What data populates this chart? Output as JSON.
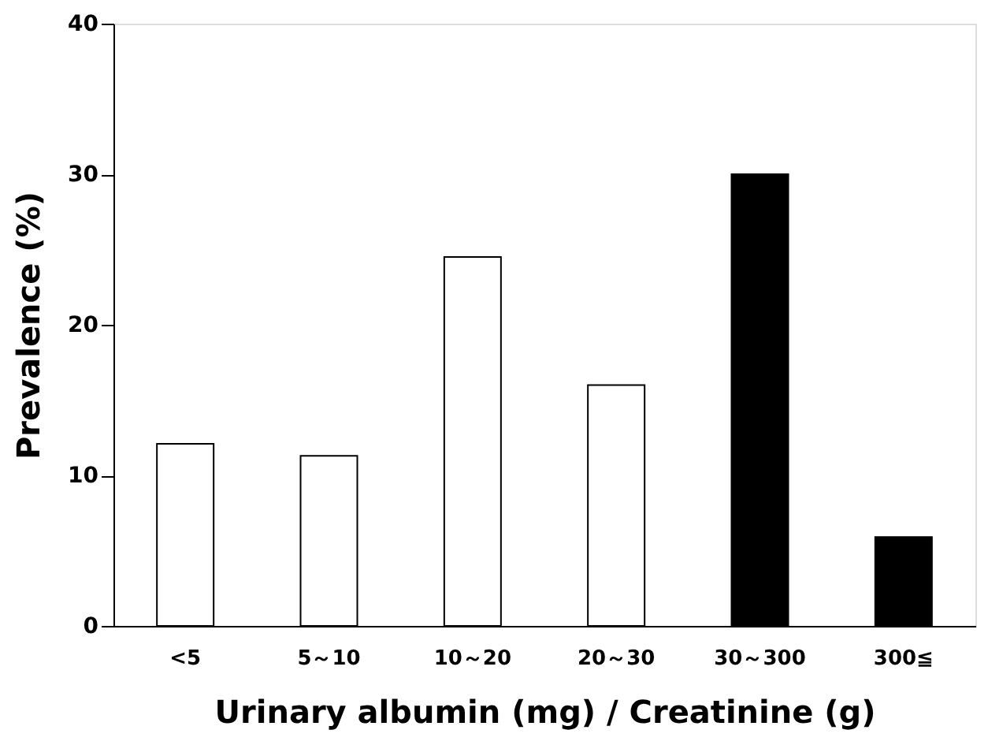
{
  "chart_data": {
    "type": "bar",
    "xlabel": "Urinary albumin (mg) / Creatinine (g)",
    "ylabel": "Prevalence (%)",
    "categories": [
      "<5",
      "5～10",
      "10～20",
      "20～30",
      "30～300",
      "300≦"
    ],
    "values": [
      12.1,
      11.3,
      24.5,
      16.0,
      30.0,
      5.9
    ],
    "colors": [
      "#ffffff",
      "#ffffff",
      "#ffffff",
      "#ffffff",
      "#000000",
      "#000000"
    ],
    "ylim": [
      0,
      40
    ],
    "yticks": [
      0,
      10,
      20,
      30,
      40
    ],
    "grid": false
  }
}
